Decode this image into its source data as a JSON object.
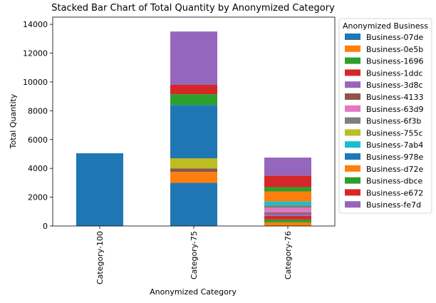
{
  "chart_data": {
    "type": "bar",
    "stacked": true,
    "title": "Stacked Bar Chart of Total Quantity by Anonymized Category",
    "xlabel": "Anonymized Category",
    "ylabel": "Total Quantity",
    "ylim": [
      0,
      14500
    ],
    "yticks": [
      0,
      2000,
      4000,
      6000,
      8000,
      10000,
      12000,
      14000
    ],
    "categories": [
      "Category-100",
      "Category-75",
      "Category-76"
    ],
    "legend_title": "Anonymized Business",
    "legend_position": "outside-right",
    "series": [
      {
        "name": "Business-07de",
        "color": "#1f77b4",
        "values": [
          0,
          3000,
          0
        ]
      },
      {
        "name": "Business-0e5b",
        "color": "#ff7f0e",
        "values": [
          0,
          750,
          250
        ]
      },
      {
        "name": "Business-1696",
        "color": "#2ca02c",
        "values": [
          0,
          0,
          200
        ]
      },
      {
        "name": "Business-1ddc",
        "color": "#d62728",
        "values": [
          0,
          0,
          250
        ]
      },
      {
        "name": "Business-3d8c",
        "color": "#9467bd",
        "values": [
          0,
          0,
          150
        ]
      },
      {
        "name": "Business-4133",
        "color": "#8c564b",
        "values": [
          0,
          250,
          100
        ]
      },
      {
        "name": "Business-63d9",
        "color": "#e377c2",
        "values": [
          0,
          0,
          300
        ]
      },
      {
        "name": "Business-6f3b",
        "color": "#7f7f7f",
        "values": [
          0,
          0,
          200
        ]
      },
      {
        "name": "Business-755c",
        "color": "#bcbd22",
        "values": [
          0,
          700,
          0
        ]
      },
      {
        "name": "Business-7ab4",
        "color": "#17becf",
        "values": [
          0,
          0,
          250
        ]
      },
      {
        "name": "Business-978e",
        "color": "#1f77b4",
        "values": [
          5050,
          3700,
          0
        ]
      },
      {
        "name": "Business-d72e",
        "color": "#ff7f0e",
        "values": [
          0,
          0,
          700
        ]
      },
      {
        "name": "Business-dbce",
        "color": "#2ca02c",
        "values": [
          0,
          750,
          300
        ]
      },
      {
        "name": "Business-e672",
        "color": "#d62728",
        "values": [
          0,
          650,
          800
        ]
      },
      {
        "name": "Business-fe7d",
        "color": "#9467bd",
        "values": [
          0,
          3700,
          1250
        ]
      }
    ]
  }
}
